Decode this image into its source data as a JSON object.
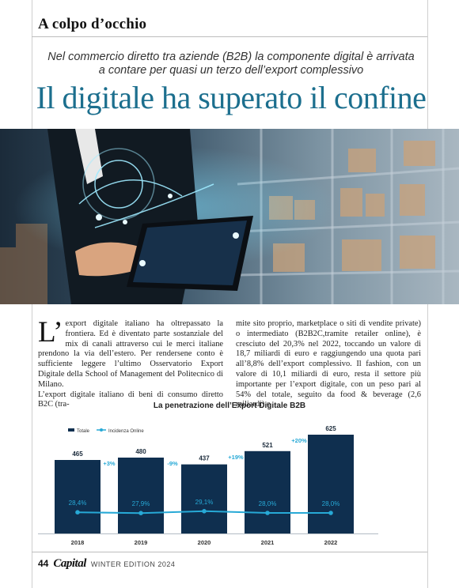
{
  "section": "A colpo d’occhio",
  "subtitle": "Nel commercio diretto tra aziende (B2B) la componente digital è arrivata a contare per quasi un terzo dell’export complessivo",
  "headline": "Il digitale ha superato il confine",
  "article": {
    "dropcap": "L’",
    "col1_p1": "export digitale italiano ha oltrepassato la frontiera. Ed è diventato parte sostanziale del mix di canali attraverso cui le merci italiane prendono la via dell’estero. Per rendersene conto è sufficiente leggere l’ultimo Osservatorio Export Digitale della School of Management del Politecnico di Milano.",
    "col1_p2": "L’export digitale italiano di beni di consumo diretto B2C (tra-",
    "col2": "mite sito proprio, marketplace o siti di vendite private) o intermediato (B2B2C,tramite retailer online), è cresciuto del 20,3% nel 2022, toccando un valore di 18,7 miliardi di euro e raggiungendo una quota pari all’8,8% dell’export complessivo. Il fashion, con un valore di 10,1 miliardi di euro, resta il settore più importante per l’export digitale, con un peso pari al 54% del totale, seguito da food & beverage (2,6 miliardi) e"
  },
  "chart_data": {
    "type": "bar",
    "title": "La penetrazione dell’Export Digitale B2B",
    "categories": [
      "2018",
      "2019",
      "2020",
      "2021",
      "2022"
    ],
    "series": [
      {
        "name": "Totale",
        "kind": "bar",
        "color": "#0f2f4f",
        "values": [
          465,
          480,
          437,
          521,
          625
        ],
        "labels": [
          "465",
          "480",
          "437",
          "521",
          "625"
        ]
      },
      {
        "name": "Incidenza Online",
        "kind": "line",
        "color": "#27a9d6",
        "values": [
          28.4,
          27.9,
          29.1,
          28.0,
          28.0
        ],
        "labels": [
          "28,4%",
          "27,9%",
          "29,1%",
          "28,0%",
          "28,0%"
        ]
      }
    ],
    "growth_labels": [
      "+3%",
      "-9%",
      "+19%",
      "+20%"
    ],
    "legend_position": "top-left",
    "ylim": [
      0,
      650
    ],
    "grid": false
  },
  "footer": {
    "page": "44",
    "logo": "Capital",
    "edition": "WINTER EDITION 2024"
  }
}
